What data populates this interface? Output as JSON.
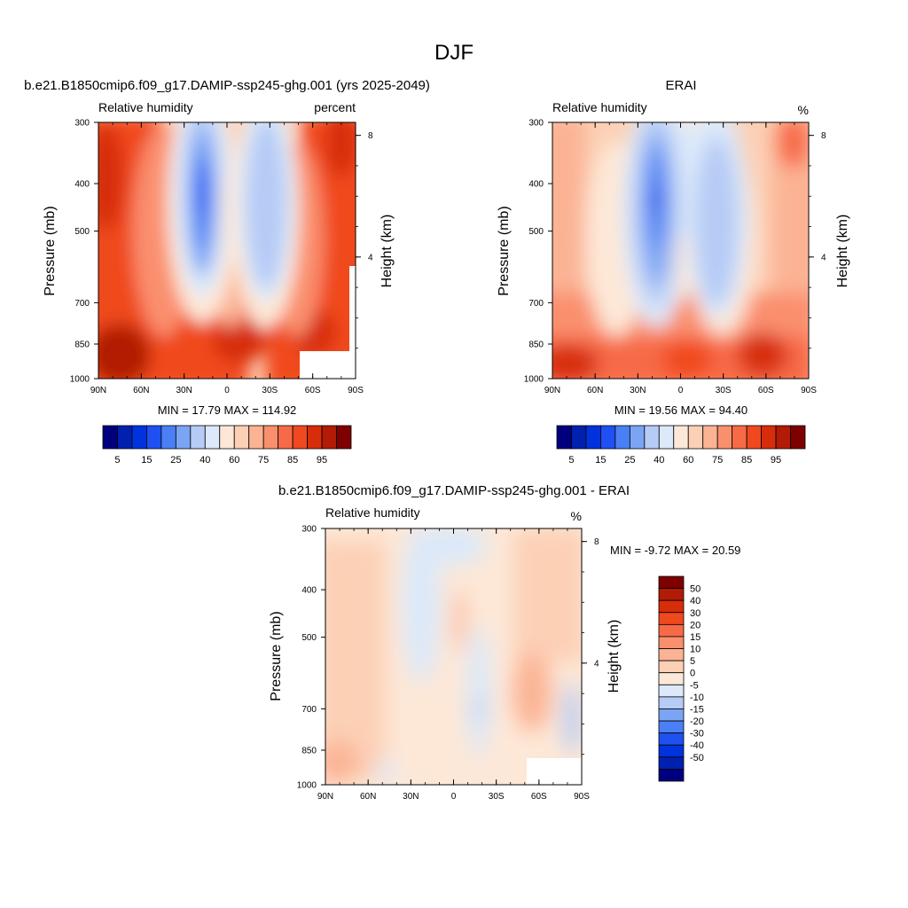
{
  "figure": {
    "title": "DJF"
  },
  "chart_data": [
    {
      "type": "heatmap",
      "title": "b.e21.B1850cmip6.f09_g17.DAMIP-ssp245-ghg.001 (yrs 2025-2049)",
      "left_string": "Relative humidity",
      "right_string": "percent",
      "ylabel": "Pressure (mb)",
      "ylabel_right": "Height (km)",
      "x_ticks": [
        "90N",
        "60N",
        "30N",
        "0",
        "30S",
        "60S",
        "90S"
      ],
      "y_ticks": [
        "300",
        "400",
        "500",
        "700",
        "850",
        "1000"
      ],
      "y_right_ticks": [
        "8",
        "4"
      ],
      "min_max": "MIN =  17.79  MAX = 114.92",
      "min": 17.79,
      "max": 114.92,
      "colorbar_labels": [
        "5",
        "15",
        "25",
        "40",
        "60",
        "75",
        "85",
        "95"
      ]
    },
    {
      "type": "heatmap",
      "title": "ERAI",
      "left_string": "Relative humidity",
      "right_string": "%",
      "ylabel": "Pressure (mb)",
      "ylabel_right": "Height (km)",
      "x_ticks": [
        "90N",
        "60N",
        "30N",
        "0",
        "30S",
        "60S",
        "90S"
      ],
      "y_ticks": [
        "300",
        "400",
        "500",
        "700",
        "850",
        "1000"
      ],
      "y_right_ticks": [
        "8",
        "4"
      ],
      "min_max": "MIN =  19.56  MAX =  94.40",
      "min": 19.56,
      "max": 94.4,
      "colorbar_labels": [
        "5",
        "15",
        "25",
        "40",
        "60",
        "75",
        "85",
        "95"
      ]
    },
    {
      "type": "heatmap",
      "title": "b.e21.B1850cmip6.f09_g17.DAMIP-ssp245-ghg.001 - ERAI",
      "left_string": "Relative humidity",
      "right_string": "%",
      "ylabel": "Pressure (mb)",
      "ylabel_right": "Height (km)",
      "x_ticks": [
        "90N",
        "60N",
        "30N",
        "0",
        "30S",
        "60S",
        "90S"
      ],
      "y_ticks": [
        "300",
        "400",
        "500",
        "700",
        "850",
        "1000"
      ],
      "y_right_ticks": [
        "8",
        "4"
      ],
      "min_max": "MIN =  -9.72  MAX =  20.59",
      "min": -9.72,
      "max": 20.59,
      "colorbar_labels": [
        "50",
        "40",
        "30",
        "20",
        "15",
        "10",
        "5",
        "0",
        "-5",
        "-10",
        "-15",
        "-20",
        "-30",
        "-40",
        "-50"
      ]
    }
  ],
  "palettes": {
    "full": [
      "#00007f",
      "#0020b0",
      "#0033dd",
      "#1f50f2",
      "#4a7ff5",
      "#7ba4f4",
      "#b6cbf5",
      "#dbe9fa",
      "#fde8d7",
      "#fcd0b5",
      "#fbb394",
      "#fa8f6e",
      "#f76a47",
      "#f0481f",
      "#d72d0a",
      "#b21b05",
      "#7f0000"
    ],
    "diff": [
      "#7f0000",
      "#b21b05",
      "#d72d0a",
      "#f0481f",
      "#f76a47",
      "#fa8f6e",
      "#fbb394",
      "#fcd0b5",
      "#fde8d7",
      "#dbe9fa",
      "#b6cbf5",
      "#7ba4f4",
      "#4a7ff5",
      "#1f50f2",
      "#0033dd",
      "#0020b0",
      "#00007f"
    ]
  }
}
